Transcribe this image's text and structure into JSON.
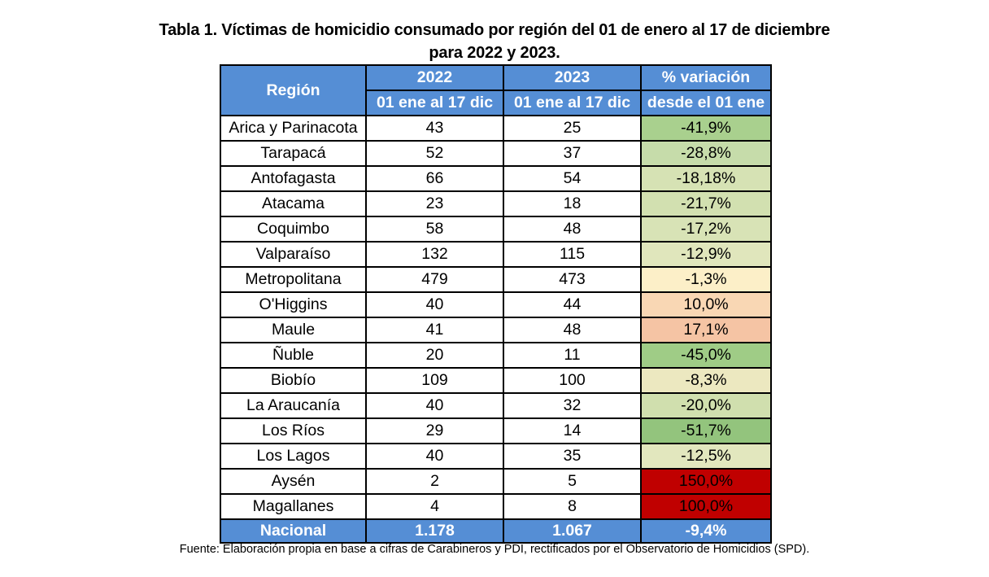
{
  "title": {
    "line1": "Tabla 1. Víctimas de homicidio consumado por región del 01 de enero al 17 de diciembre",
    "line2": "para 2022 y 2023."
  },
  "table": {
    "headers": {
      "region": "Región",
      "y2022_top": "2022",
      "y2022_sub": "01 ene al 17 dic",
      "y2023_top": "2023",
      "y2023_sub": "01 ene al 17 dic",
      "var_top": "% variación",
      "var_sub": "desde el 01 ene"
    },
    "rows": [
      {
        "region": "Arica y Parinacota",
        "v2022": "43",
        "v2023": "25",
        "variation": "-41,9%",
        "color": "#a9d08e"
      },
      {
        "region": "Tarapacá",
        "v2022": "52",
        "v2023": "37",
        "variation": "-28,8%",
        "color": "#c6dcaa"
      },
      {
        "region": "Antofagasta",
        "v2022": "66",
        "v2023": "54",
        "variation": "-18,18%",
        "color": "#d6e2b4"
      },
      {
        "region": "Atacama",
        "v2022": "23",
        "v2023": "18",
        "variation": "-21,7%",
        "color": "#d2e0b0"
      },
      {
        "region": "Coquimbo",
        "v2022": "58",
        "v2023": "48",
        "variation": "-17,2%",
        "color": "#d8e3b6"
      },
      {
        "region": "Valparaíso",
        "v2022": "132",
        "v2023": "115",
        "variation": "-12,9%",
        "color": "#e0e6bc"
      },
      {
        "region": "Metropolitana",
        "v2022": "479",
        "v2023": "473",
        "variation": "-1,3%",
        "color": "#fcefc8"
      },
      {
        "region": "O'Higgins",
        "v2022": "40",
        "v2023": "44",
        "variation": "10,0%",
        "color": "#f9d7b4"
      },
      {
        "region": "Maule",
        "v2022": "41",
        "v2023": "48",
        "variation": "17,1%",
        "color": "#f5c4a4"
      },
      {
        "region": "Ñuble",
        "v2022": "20",
        "v2023": "11",
        "variation": "-45,0%",
        "color": "#9fcc86"
      },
      {
        "region": "Biobío",
        "v2022": "109",
        "v2023": "100",
        "variation": "-8,3%",
        "color": "#ece8c0"
      },
      {
        "region": "La Araucanía",
        "v2022": "40",
        "v2023": "32",
        "variation": "-20,0%",
        "color": "#d0dfae"
      },
      {
        "region": "Los Ríos",
        "v2022": "29",
        "v2023": "14",
        "variation": "-51,7%",
        "color": "#93c47d"
      },
      {
        "region": "Los Lagos",
        "v2022": "40",
        "v2023": "35",
        "variation": "-12,5%",
        "color": "#e2e7be"
      },
      {
        "region": "Aysén",
        "v2022": "2",
        "v2023": "5",
        "variation": "150,0%",
        "color": "#c00000"
      },
      {
        "region": "Magallanes",
        "v2022": "4",
        "v2023": "8",
        "variation": "100,0%",
        "color": "#c00000"
      }
    ],
    "total": {
      "region": "Nacional",
      "v2022": "1.178",
      "v2023": "1.067",
      "variation": "-9,4%"
    }
  },
  "footer": "Fuente: Elaboración propia en base a cifras de Carabineros y PDI, rectificados por el Observatorio de Homicidios (SPD).",
  "colors": {
    "header_blue": "#558ed5"
  }
}
